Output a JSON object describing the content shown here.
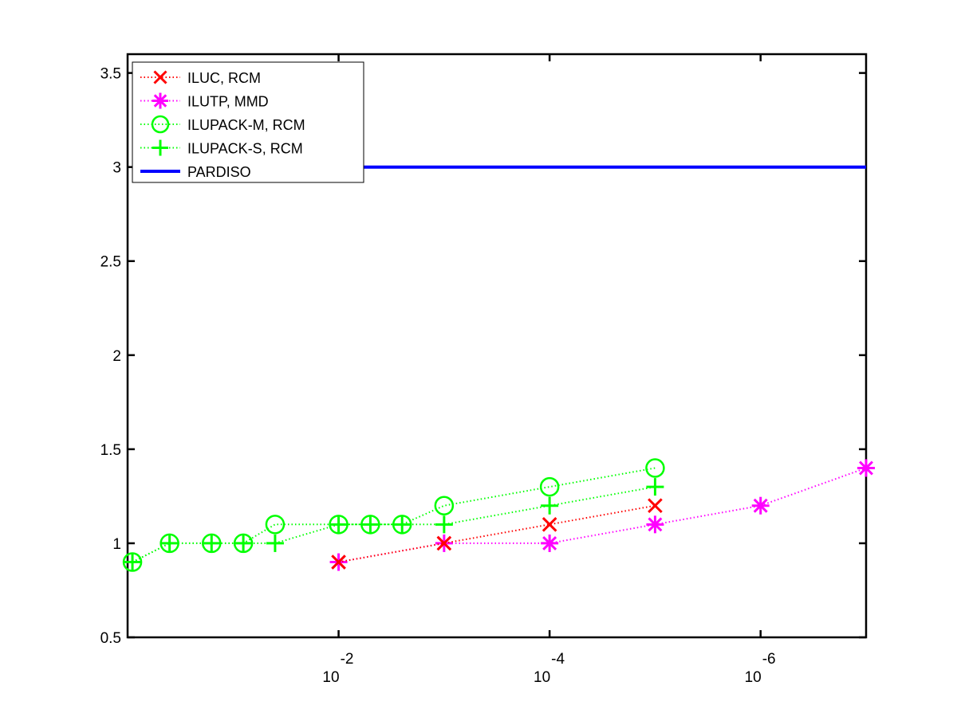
{
  "chart_data": {
    "type": "line",
    "title": "",
    "xlabel": "",
    "ylabel": "",
    "x_scale": "log",
    "x_reversed": true,
    "xlim": [
      1,
      1e-07
    ],
    "ylim": [
      0.5,
      3.6
    ],
    "x_ticks": [
      {
        "value": 0.01,
        "base": "10",
        "exponent": "-2"
      },
      {
        "value": 0.0001,
        "base": "10",
        "exponent": "-4"
      },
      {
        "value": 1e-06,
        "base": "10",
        "exponent": "-6"
      }
    ],
    "y_ticks": [
      {
        "value": 0.5,
        "label": "0.5"
      },
      {
        "value": 1,
        "label": "1"
      },
      {
        "value": 1.5,
        "label": "1.5"
      },
      {
        "value": 2,
        "label": "2"
      },
      {
        "value": 2.5,
        "label": "2.5"
      },
      {
        "value": 3,
        "label": "3"
      },
      {
        "value": 3.5,
        "label": "3.5"
      }
    ],
    "grid": false,
    "legend_position": "top-left",
    "series": [
      {
        "name": "ILUC, RCM",
        "color": "#ff0000",
        "marker": "x",
        "line_style": "dotted",
        "x": [
          0.01,
          0.001,
          0.0001,
          1e-05
        ],
        "y": [
          0.9,
          1.0,
          1.1,
          1.2
        ]
      },
      {
        "name": "ILUTP, MMD",
        "color": "#ff00ff",
        "marker": "asterisk",
        "line_style": "dotted",
        "x": [
          0.01,
          0.001,
          0.0001,
          1e-05,
          1e-06,
          1e-07
        ],
        "y": [
          0.9,
          1.0,
          1.0,
          1.1,
          1.2,
          1.4
        ]
      },
      {
        "name": "ILUPACK-M, RCM",
        "color": "#00ff00",
        "marker": "circle",
        "line_style": "dotted",
        "x": [
          0.9,
          0.4,
          0.16,
          0.08,
          0.04,
          0.01,
          0.005,
          0.0025,
          0.001,
          0.0001,
          1e-05
        ],
        "y": [
          0.9,
          1.0,
          1.0,
          1.0,
          1.1,
          1.1,
          1.1,
          1.1,
          1.2,
          1.3,
          1.4
        ]
      },
      {
        "name": "ILUPACK-S, RCM",
        "color": "#00ff00",
        "marker": "plus",
        "line_style": "dotted",
        "x": [
          0.9,
          0.4,
          0.16,
          0.08,
          0.04,
          0.01,
          0.005,
          0.0025,
          0.001,
          0.0001,
          1e-05
        ],
        "y": [
          0.9,
          1.0,
          1.0,
          1.0,
          1.0,
          1.1,
          1.1,
          1.1,
          1.1,
          1.2,
          1.3
        ]
      },
      {
        "name": "PARDISO",
        "color": "#0000ff",
        "marker": "none",
        "line_style": "solid",
        "x": [
          0.01,
          1e-07
        ],
        "y": [
          3.0,
          3.0
        ]
      }
    ]
  }
}
